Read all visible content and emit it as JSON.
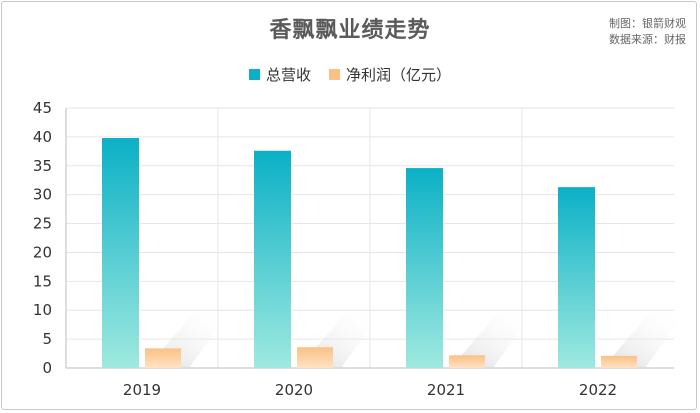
{
  "title": "香飘飘业绩走势",
  "credit": {
    "line1": "制图：银箭财观",
    "line2": "数据来源：财报"
  },
  "colors": {
    "revenue_top": "#0bb0c6",
    "revenue_bottom": "#9fe9df",
    "profit_top": "#fbc184",
    "profit_bottom": "#ffe2c4",
    "grid": "#e6e6e6",
    "axis": "#bdbdbd"
  },
  "chart_data": {
    "type": "bar",
    "title": "香飘飘业绩走势",
    "categories": [
      "2019",
      "2020",
      "2021",
      "2022"
    ],
    "series": [
      {
        "name": "总营收",
        "values": [
          39.8,
          37.6,
          34.6,
          31.3
        ]
      },
      {
        "name": "净利润（亿元）",
        "values": [
          3.4,
          3.6,
          2.2,
          2.1
        ]
      }
    ],
    "yticks": [
      "0",
      "5",
      "10",
      "15",
      "20",
      "25",
      "30",
      "35",
      "40",
      "45"
    ],
    "ylim": [
      0,
      45
    ],
    "grid": true,
    "legend": "top-center"
  }
}
